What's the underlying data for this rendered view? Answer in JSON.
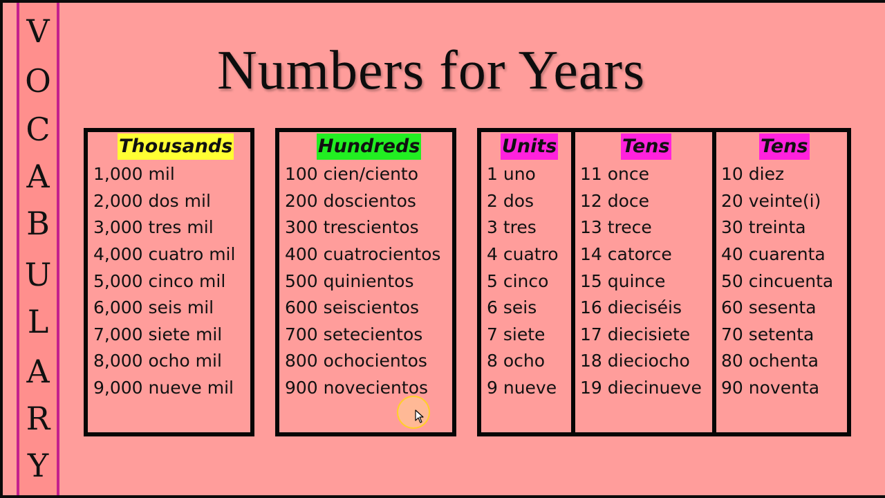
{
  "colors": {
    "background": "#ff9d9b",
    "sidebar_border": "#c4208e",
    "highlight_thousands": "#ffff33",
    "highlight_hundreds": "#22ee22",
    "highlight_units_tens": "#ff22dd"
  },
  "sidebar": {
    "letters": [
      "V",
      "O",
      "C",
      "A",
      "B",
      "U",
      "L",
      "A",
      "R",
      "Y"
    ]
  },
  "title": "Numbers for Years",
  "columns": [
    {
      "header": "Thousands",
      "highlight": "#ffff33",
      "items": [
        "1,000 mil",
        "2,000 dos mil",
        "3,000 tres mil",
        "4,000 cuatro mil",
        "5,000 cinco mil",
        "6,000 seis mil",
        "7,000 siete mil",
        "8,000 ocho mil",
        "9,000 nueve mil"
      ]
    },
    {
      "header": "Hundreds",
      "highlight": "#22ee22",
      "items": [
        "100 cien/ciento",
        "200 doscientos",
        "300 trescientos",
        "400 cuatrocientos",
        "500 quinientos",
        "600 seiscientos",
        "700 setecientos",
        "800 ochocientos",
        "900 novecientos"
      ]
    },
    {
      "header": "Units",
      "highlight": "#ff22dd",
      "items": [
        "1 uno",
        "2 dos",
        "3 tres",
        "4 cuatro",
        "5 cinco",
        "6 seis",
        "7 siete",
        "8 ocho",
        "9 nueve"
      ]
    },
    {
      "header": "Tens",
      "highlight": "#ff22dd",
      "items": [
        "11 once",
        "12 doce",
        "13 trece",
        "14 catorce",
        "15 quince",
        "16 dieciséis",
        "17 diecisiete",
        "18 dieciocho",
        "19 diecinueve"
      ]
    },
    {
      "header": "Tens",
      "highlight": "#ff22dd",
      "items": [
        "10 diez",
        "20 veinte(i)",
        "30 treinta",
        "40 cuarenta",
        "50 cincuenta",
        "60 sesenta",
        "70 setenta",
        "80 ochenta",
        "90 noventa"
      ]
    }
  ]
}
